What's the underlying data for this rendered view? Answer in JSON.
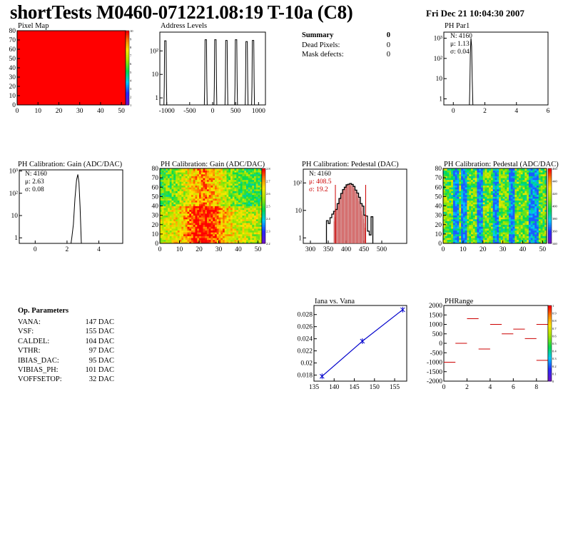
{
  "header": {
    "title": "shortTests M0460-071221.08:19 T-10a (C8)",
    "date": "Fri Dec 21 10:04:30 2007"
  },
  "summary": {
    "title": "Summary",
    "title_value": "0",
    "rows": [
      {
        "label": "Dead Pixels:",
        "value": "0"
      },
      {
        "label": "Mask defects:",
        "value": "0"
      }
    ]
  },
  "op_params": {
    "title": "Op. Parameters",
    "rows": [
      {
        "label": "VANA:",
        "value": "147 DAC"
      },
      {
        "label": "VSF:",
        "value": "155 DAC"
      },
      {
        "label": "CALDEL:",
        "value": "104 DAC"
      },
      {
        "label": "VTHR:",
        "value": "97 DAC"
      },
      {
        "label": "IBIAS_DAC:",
        "value": "95 DAC"
      },
      {
        "label": "VIBIAS_PH:",
        "value": "101 DAC"
      },
      {
        "label": "VOFFSETOP:",
        "value": "32 DAC"
      }
    ]
  },
  "colors": {
    "hist_line": "#000000",
    "pedestal_marker": "#cc0000",
    "pedestal_fill": "#d08a8a",
    "fit_line": "#0000cc",
    "phrange_marker": "#cc0000",
    "map_red": "#ff0000"
  },
  "chart_data": [
    {
      "id": "pixelmap",
      "type": "heatmap",
      "title": "Pixel Map",
      "x_ticks": [
        "0",
        "10",
        "20",
        "30",
        "40",
        "50"
      ],
      "y_ticks": [
        "0",
        "10",
        "20",
        "30",
        "40",
        "50",
        "60",
        "70",
        "80"
      ],
      "xlim": [
        0,
        52
      ],
      "ylim": [
        0,
        80
      ],
      "colorbar_ticks": [
        "1",
        "2",
        "3",
        "4",
        "5",
        "6",
        "7",
        "8",
        "9",
        "10"
      ],
      "uniform_value": 10
    },
    {
      "id": "address",
      "type": "bar",
      "title": "Address Levels",
      "log_y": true,
      "x_ticks": [
        "-1000",
        "-500",
        "0",
        "500",
        "1000"
      ],
      "y_ticks": [
        "1",
        "10",
        "10²"
      ],
      "xlim": [
        -1150,
        1150
      ],
      "peaks": [
        {
          "x": -1030,
          "height": 270
        },
        {
          "x": -150,
          "height": 300
        },
        {
          "x": 60,
          "height": 300
        },
        {
          "x": 300,
          "height": 280
        },
        {
          "x": 510,
          "height": 300
        },
        {
          "x": 740,
          "height": 250
        },
        {
          "x": 880,
          "height": 280
        }
      ]
    },
    {
      "id": "phpar1",
      "type": "bar",
      "title": "PH Par1",
      "log_y": true,
      "x_ticks": [
        "0",
        "2",
        "4",
        "6"
      ],
      "y_ticks": [
        "1",
        "10",
        "10²",
        "10³"
      ],
      "xlim": [
        -0.6,
        6
      ],
      "stats": {
        "n": "N: 4160",
        "mean": "μ: 1.13",
        "sigma": "σ: 0.04"
      }
    },
    {
      "id": "gain_hist",
      "type": "bar",
      "title": "PH Calibration: Gain (ADC/DAC)",
      "log_y": true,
      "x_ticks": [
        "0",
        "2",
        "4"
      ],
      "y_ticks": [
        "1",
        "10",
        "10²",
        "10³"
      ],
      "xlim": [
        -1,
        5.5
      ],
      "stats": {
        "n": "N: 4160",
        "mean": "μ: 2.63",
        "sigma": "σ: 0.08"
      }
    },
    {
      "id": "gain_map",
      "type": "heatmap",
      "title": "PH Calibration: Gain (ADC/DAC)",
      "x_ticks": [
        "0",
        "10",
        "20",
        "30",
        "40",
        "50"
      ],
      "y_ticks": [
        "0",
        "10",
        "20",
        "30",
        "40",
        "50",
        "60",
        "70",
        "80"
      ],
      "colorbar_ticks": [
        "2.2",
        "2.3",
        "2.4",
        "2.5",
        "2.6",
        "2.7",
        "2.8"
      ]
    },
    {
      "id": "ped_hist",
      "type": "bar",
      "title": "PH Calibration: Pedestal (DAC)",
      "log_y": true,
      "x_ticks": [
        "300",
        "350",
        "400",
        "450",
        "500"
      ],
      "y_ticks": [
        "1",
        "10",
        "10²"
      ],
      "xlim": [
        280,
        570
      ],
      "stats": {
        "n": "N: 4160",
        "mean": "μ: 408.5",
        "sigma": "σ: 19.2"
      },
      "markers": [
        370,
        455
      ]
    },
    {
      "id": "ped_map",
      "type": "heatmap",
      "title": "PH Calibration: Pedestal (ADC/DAC)",
      "x_ticks": [
        "0",
        "10",
        "20",
        "30",
        "40",
        "50"
      ],
      "y_ticks": [
        "0",
        "10",
        "20",
        "30",
        "40",
        "50",
        "60",
        "70",
        "80"
      ],
      "colorbar_ticks": [
        "340",
        "360",
        "380",
        "400",
        "420",
        "440",
        "460"
      ]
    },
    {
      "id": "iana",
      "type": "line",
      "title": "Iana vs. Vana",
      "x_ticks": [
        "135",
        "140",
        "145",
        "150",
        "155"
      ],
      "y_ticks": [
        "0.018",
        "0.02",
        "0.022",
        "0.024",
        "0.026",
        "0.028"
      ],
      "xlim": [
        135,
        158
      ],
      "ylim": [
        0.017,
        0.0295
      ],
      "x": [
        137,
        147,
        157
      ],
      "y": [
        0.0178,
        0.0236,
        0.0288
      ]
    },
    {
      "id": "phrange",
      "type": "scatter",
      "title": "PHRange",
      "x_ticks": [
        "0",
        "2",
        "4",
        "6",
        "8"
      ],
      "y_ticks": [
        "-2000",
        "-1500",
        "-1000",
        "-500",
        "0",
        "500",
        "1000",
        "1500",
        "2000"
      ],
      "xlim": [
        0,
        9
      ],
      "ylim": [
        -2000,
        2000
      ],
      "colorbar_ticks": [
        "0",
        "0.1",
        "0.2",
        "0.3",
        "0.4",
        "0.5",
        "0.6",
        "0.7",
        "0.8",
        "0.9",
        "1"
      ],
      "segments": [
        {
          "x": 0,
          "y": -1000
        },
        {
          "x": 1,
          "y": 0
        },
        {
          "x": 2,
          "y": 1300
        },
        {
          "x": 3,
          "y": -300
        },
        {
          "x": 4,
          "y": 1000
        },
        {
          "x": 5,
          "y": 500
        },
        {
          "x": 6,
          "y": 750
        },
        {
          "x": 7,
          "y": 250
        },
        {
          "x": 8,
          "y": 1000
        },
        {
          "x": 8,
          "y": -900
        }
      ]
    }
  ]
}
